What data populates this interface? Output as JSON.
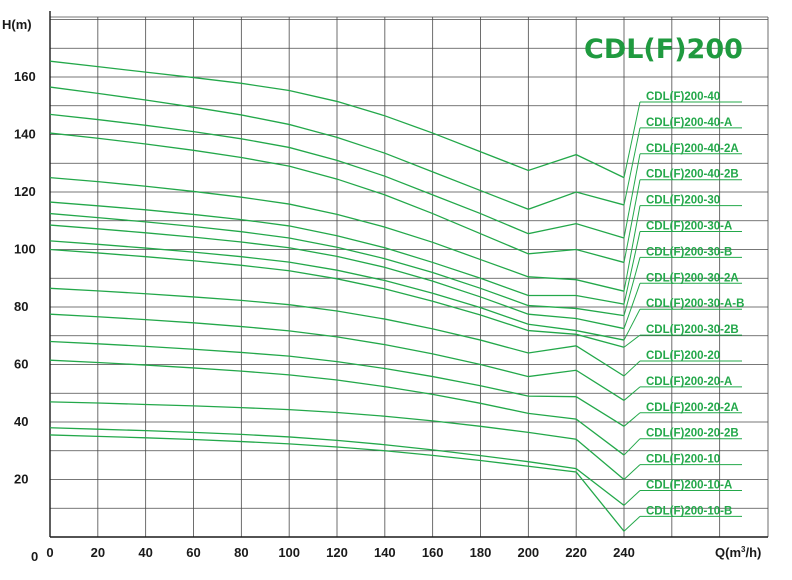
{
  "chart_data": {
    "type": "line",
    "title": "CDL(F)200",
    "xlabel": "Q(m³/h)",
    "xlabel_main": "Q(m",
    "xlabel_sup": "3",
    "xlabel_tail": "/h)",
    "ylabel": "H(m)",
    "xlim": [
      0,
      240
    ],
    "ylim": [
      0,
      170
    ],
    "x_ticks": [
      0,
      20,
      40,
      60,
      80,
      100,
      120,
      140,
      160,
      180,
      200,
      220,
      240
    ],
    "y_ticks": [
      20,
      40,
      60,
      80,
      100,
      120,
      140,
      160
    ],
    "origin_label": "0",
    "grid": true,
    "colors": {
      "curve": "#23a84a",
      "title": "#1f9a3f",
      "grid": "#4a4a4a",
      "axis": "#1a1a1a"
    },
    "x": [
      0,
      20,
      40,
      60,
      80,
      100,
      120,
      140,
      160,
      180,
      200,
      220,
      240
    ],
    "series": [
      {
        "name": "CDL(F)200-40",
        "values": [
          165.5,
          163.6,
          161.7,
          159.8,
          157.8,
          155.3,
          151.5,
          146.5,
          140.5,
          134,
          127.5,
          133,
          125
        ]
      },
      {
        "name": "CDL(F)200-40-A",
        "values": [
          156.5,
          154.3,
          152,
          149.5,
          146.8,
          143.5,
          139,
          133.5,
          127,
          120.5,
          114,
          120,
          115.5
        ]
      },
      {
        "name": "CDL(F)200-40-2A",
        "values": [
          147,
          145.2,
          143.2,
          141,
          138.5,
          135.5,
          131,
          125.5,
          119,
          112.5,
          105.5,
          109,
          104
        ]
      },
      {
        "name": "CDL(F)200-40-2B",
        "values": [
          140.5,
          138.7,
          136.7,
          134.5,
          132,
          129,
          124.5,
          119,
          112.5,
          105.5,
          98.5,
          100,
          95.5
        ]
      },
      {
        "name": "CDL(F)200-30",
        "values": [
          125,
          123.6,
          122,
          120.2,
          118.2,
          115.8,
          112.2,
          107.8,
          102.5,
          96.5,
          90.5,
          89.5,
          85.5
        ]
      },
      {
        "name": "CDL(F)200-30-A",
        "values": [
          116.5,
          115.2,
          113.8,
          112.2,
          110.4,
          108.2,
          104.8,
          100.6,
          95.5,
          90,
          84,
          84,
          81
        ]
      },
      {
        "name": "CDL(F)200-30-B",
        "values": [
          112.5,
          111.1,
          109.6,
          108,
          106.2,
          104,
          100.8,
          96.8,
          92,
          86.5,
          80.5,
          79.5,
          77
        ]
      },
      {
        "name": "CDL(F)200-30-2A",
        "values": [
          108.5,
          107.2,
          105.8,
          104.3,
          102.6,
          100.6,
          97.6,
          93.8,
          89,
          83.5,
          77.5,
          76,
          72.5
        ]
      },
      {
        "name": "CDL(F)200-30-A-B",
        "values": [
          103,
          101.8,
          100.5,
          99.1,
          97.5,
          95.6,
          92.8,
          89.2,
          84.8,
          79.8,
          74,
          71.8,
          68.5
        ]
      },
      {
        "name": "CDL(F)200-30-2B",
        "values": [
          100,
          98.8,
          97.5,
          96.1,
          94.5,
          92.6,
          89.8,
          86.3,
          82,
          77.2,
          71.8,
          70.5,
          66
        ]
      },
      {
        "name": "CDL(F)200-20",
        "values": [
          86.5,
          85.6,
          84.6,
          83.5,
          82.3,
          80.8,
          78.6,
          75.8,
          72.4,
          68.5,
          64,
          66.5,
          56
        ]
      },
      {
        "name": "CDL(F)200-20-A",
        "values": [
          77.5,
          76.6,
          75.6,
          74.5,
          73.2,
          71.7,
          69.6,
          66.9,
          63.7,
          60,
          55.8,
          58,
          47.5
        ]
      },
      {
        "name": "CDL(F)200-20-2A",
        "values": [
          68,
          67.2,
          66.3,
          65.3,
          64.2,
          62.9,
          61,
          58.6,
          55.8,
          52.6,
          49,
          48.8,
          38.5
        ]
      },
      {
        "name": "CDL(F)200-20-2B",
        "values": [
          61.5,
          60.7,
          59.8,
          58.8,
          57.7,
          56.4,
          54.6,
          52.3,
          49.6,
          46.5,
          43,
          41,
          28.5
        ]
      },
      {
        "name": "CDL(F)200-10",
        "values": [
          47,
          46.6,
          46.1,
          45.6,
          45,
          44.3,
          43.3,
          42,
          40.4,
          38.5,
          36.4,
          34,
          20
        ]
      },
      {
        "name": "CDL(F)200-10-A",
        "values": [
          38,
          37.5,
          37,
          36.4,
          35.7,
          34.8,
          33.6,
          32.1,
          30.3,
          28.3,
          26.2,
          23.8,
          11
        ]
      },
      {
        "name": "CDL(F)200-10-B",
        "values": [
          35.5,
          35,
          34.5,
          33.9,
          33.2,
          32.4,
          31.3,
          30,
          28.4,
          26.6,
          24.6,
          22.6,
          2
        ]
      }
    ]
  }
}
